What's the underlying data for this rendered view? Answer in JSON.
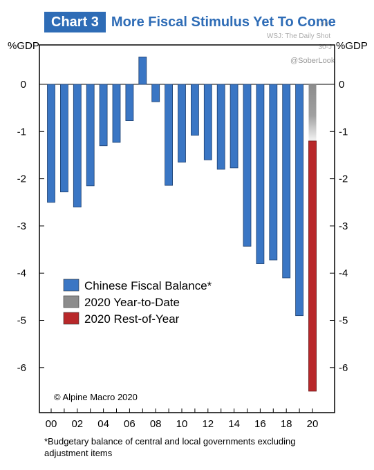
{
  "header": {
    "tag": "Chart 3",
    "title": "More Fiscal Stimulus Yet To Come"
  },
  "source": {
    "line1": "on",
    "line2": "WSJ: The Daily Shot",
    "line3": "30-J",
    "handle": "@SoberLook"
  },
  "axis": {
    "left_unit": "%GDP",
    "right_unit": "%GDP"
  },
  "copyright": "© Alpine Macro 2020",
  "footnote": "*Budgetary balance of central and local governments excluding adjustment items",
  "colors": {
    "fiscal": "#3a76c4",
    "ytd": "#8c8c8c",
    "rest": "#b8282a",
    "brand": "#2e6cb6"
  },
  "chart_data": {
    "type": "bar",
    "title": "More Fiscal Stimulus Yet To Come",
    "ylabel": "%GDP",
    "ylim": [
      -7,
      0.7
    ],
    "yticks": [
      0,
      -1,
      -2,
      -3,
      -4,
      -5,
      -6
    ],
    "xtick_labels": [
      "00",
      "02",
      "04",
      "06",
      "08",
      "10",
      "12",
      "14",
      "16",
      "18",
      "20"
    ],
    "categories": [
      "00",
      "01",
      "02",
      "03",
      "04",
      "05",
      "06",
      "07",
      "08",
      "09",
      "10",
      "11",
      "12",
      "13",
      "14",
      "15",
      "16",
      "17",
      "18",
      "19",
      "20"
    ],
    "series": [
      {
        "name": "Chinese Fiscal Balance*",
        "values": [
          -2.5,
          -2.28,
          -2.6,
          -2.15,
          -1.3,
          -1.23,
          -0.77,
          0.58,
          -0.37,
          -2.14,
          -1.65,
          -1.08,
          -1.6,
          -1.8,
          -1.77,
          -3.43,
          -3.8,
          -3.72,
          -4.1,
          -4.9,
          null
        ]
      },
      {
        "name": "2020 Year-to-Date",
        "values": [
          null,
          null,
          null,
          null,
          null,
          null,
          null,
          null,
          null,
          null,
          null,
          null,
          null,
          null,
          null,
          null,
          null,
          null,
          null,
          null,
          -1.2
        ]
      },
      {
        "name": "2020 Rest-of-Year",
        "base": -1.2,
        "values": [
          null,
          null,
          null,
          null,
          null,
          null,
          null,
          null,
          null,
          null,
          null,
          null,
          null,
          null,
          null,
          null,
          null,
          null,
          null,
          null,
          -6.5
        ]
      }
    ],
    "legend_position": "bottom-left",
    "grid": false
  }
}
